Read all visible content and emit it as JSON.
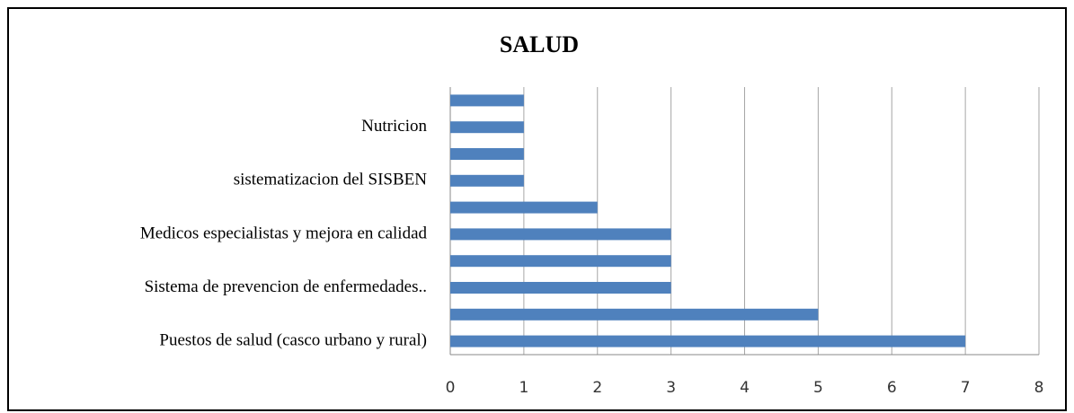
{
  "chart_data": {
    "type": "barh",
    "title": "SALUD",
    "categories": [
      "Puestos de salud (casco urbano y rural)",
      null,
      "Sistema de prevencion de enfermedades..",
      null,
      "Medicos especialistas y mejora en calidad",
      null,
      "sistematizacion del SISBEN",
      null,
      "Nutricion",
      null
    ],
    "values": [
      7,
      5,
      3,
      3,
      3,
      2,
      1,
      1,
      1,
      1
    ],
    "color": "#4f81bd",
    "xlim": [
      0,
      8
    ],
    "xticks": [
      0,
      1,
      2,
      3,
      4,
      5,
      6,
      7,
      8
    ],
    "grid": true
  }
}
